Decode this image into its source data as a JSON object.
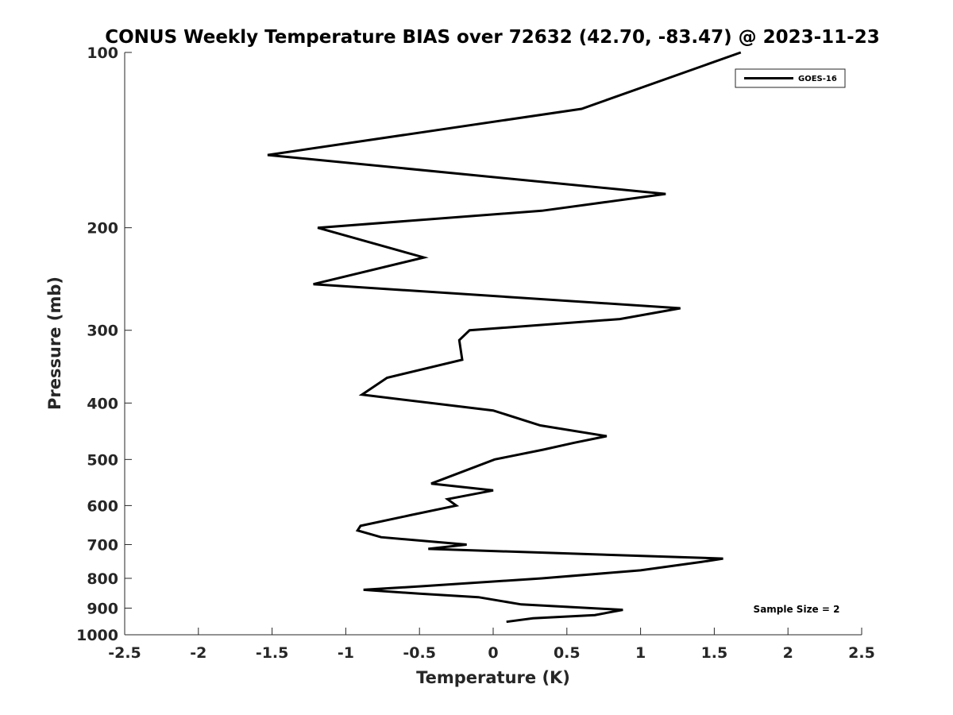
{
  "chart_data": {
    "type": "line",
    "title": "CONUS Weekly Temperature BIAS over 72632 (42.70, -83.47) @ 2023-11-23",
    "xlabel": "Temperature (K)",
    "ylabel": "Pressure (mb)",
    "xlim": [
      -2.5,
      2.5
    ],
    "ylim": [
      100,
      1000
    ],
    "y_scale": "log",
    "y_reversed": true,
    "grid": false,
    "x_ticks": [
      -2.5,
      -2,
      -1.5,
      -1,
      -0.5,
      0,
      0.5,
      1,
      1.5,
      2,
      2.5
    ],
    "x_tick_labels": [
      "-2.5",
      "-2",
      "-1.5",
      "-1",
      "-0.5",
      "0",
      "0.5",
      "1",
      "1.5",
      "2",
      "2.5"
    ],
    "y_ticks": [
      100,
      200,
      300,
      400,
      500,
      600,
      700,
      800,
      900,
      1000
    ],
    "y_tick_labels": [
      "100",
      "200",
      "300",
      "400",
      "500",
      "600",
      "700",
      "800",
      "900",
      "1000"
    ],
    "legend": {
      "position": "top-right",
      "entries": [
        "GOES-16"
      ]
    },
    "annotation": "Sample Size = 2",
    "series": [
      {
        "name": "GOES-16",
        "color": "#000000",
        "points": [
          {
            "x": 1.68,
            "y": 100
          },
          {
            "x": 0.6,
            "y": 125
          },
          {
            "x": -1.53,
            "y": 150
          },
          {
            "x": 1.17,
            "y": 175
          },
          {
            "x": 0.33,
            "y": 187
          },
          {
            "x": -1.19,
            "y": 200
          },
          {
            "x": -0.47,
            "y": 225
          },
          {
            "x": -1.22,
            "y": 250
          },
          {
            "x": 1.27,
            "y": 275
          },
          {
            "x": 0.86,
            "y": 287
          },
          {
            "x": -0.16,
            "y": 300
          },
          {
            "x": -0.23,
            "y": 312
          },
          {
            "x": -0.21,
            "y": 337
          },
          {
            "x": -0.72,
            "y": 362
          },
          {
            "x": -0.89,
            "y": 387
          },
          {
            "x": 0.0,
            "y": 412
          },
          {
            "x": 0.32,
            "y": 437
          },
          {
            "x": 0.77,
            "y": 456
          },
          {
            "x": 0.55,
            "y": 468
          },
          {
            "x": 0.34,
            "y": 481
          },
          {
            "x": 0.01,
            "y": 500
          },
          {
            "x": -0.42,
            "y": 550
          },
          {
            "x": 0.0,
            "y": 565
          },
          {
            "x": -0.31,
            "y": 585
          },
          {
            "x": -0.25,
            "y": 600
          },
          {
            "x": -0.56,
            "y": 623
          },
          {
            "x": -0.9,
            "y": 650
          },
          {
            "x": -0.92,
            "y": 662
          },
          {
            "x": -0.76,
            "y": 680
          },
          {
            "x": -0.18,
            "y": 700
          },
          {
            "x": -0.44,
            "y": 712
          },
          {
            "x": 1.56,
            "y": 740
          },
          {
            "x": 1.41,
            "y": 750
          },
          {
            "x": 1.0,
            "y": 775
          },
          {
            "x": 0.33,
            "y": 800
          },
          {
            "x": -0.47,
            "y": 825
          },
          {
            "x": -0.88,
            "y": 837
          },
          {
            "x": -0.5,
            "y": 850
          },
          {
            "x": -0.1,
            "y": 862
          },
          {
            "x": 0.19,
            "y": 887
          },
          {
            "x": 0.88,
            "y": 906
          },
          {
            "x": 0.69,
            "y": 925
          },
          {
            "x": 0.27,
            "y": 937
          },
          {
            "x": 0.09,
            "y": 950
          }
        ]
      }
    ]
  }
}
